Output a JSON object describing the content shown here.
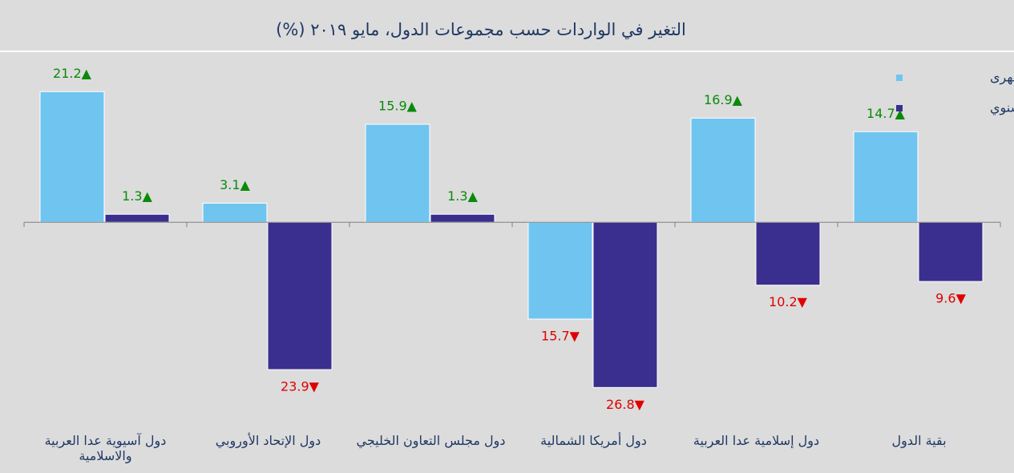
{
  "chart_data": {
    "type": "bar",
    "title": "التغير في الواردات حسب مجموعات الدول، مايو ٢٠١٩ (%)",
    "categories": [
      "دول آسيوية عدا العربية والاسلامية",
      "دول الإتحاد الأوروبي",
      "دول مجلس التعاون الخليجي",
      "دول أمريكا الشمالية",
      "دول إسلامية عدا العربية",
      "بقية الدول"
    ],
    "series": [
      {
        "name": "التغير الشهرى",
        "color": "#70c5f0",
        "values": [
          21.2,
          3.1,
          15.9,
          -15.7,
          16.9,
          14.7
        ],
        "value_labels": [
          "21.2▲",
          "3.1▲",
          "15.9▲",
          "15.7▼",
          "16.9▲",
          "14.7▲"
        ]
      },
      {
        "name": "التغير السنوي",
        "color": "#3a2f8e",
        "values": [
          1.3,
          -23.9,
          1.3,
          -26.8,
          -10.2,
          -9.6
        ],
        "value_labels": [
          "1.3▲",
          "23.9▼",
          "1.3▲",
          "26.8▼",
          "10.2▼",
          "9.6▼"
        ]
      }
    ],
    "positive_label_color": "#0a8a0a",
    "negative_label_color": "#e00000",
    "ylim": [
      -33,
      28
    ],
    "legend": "top-right"
  }
}
